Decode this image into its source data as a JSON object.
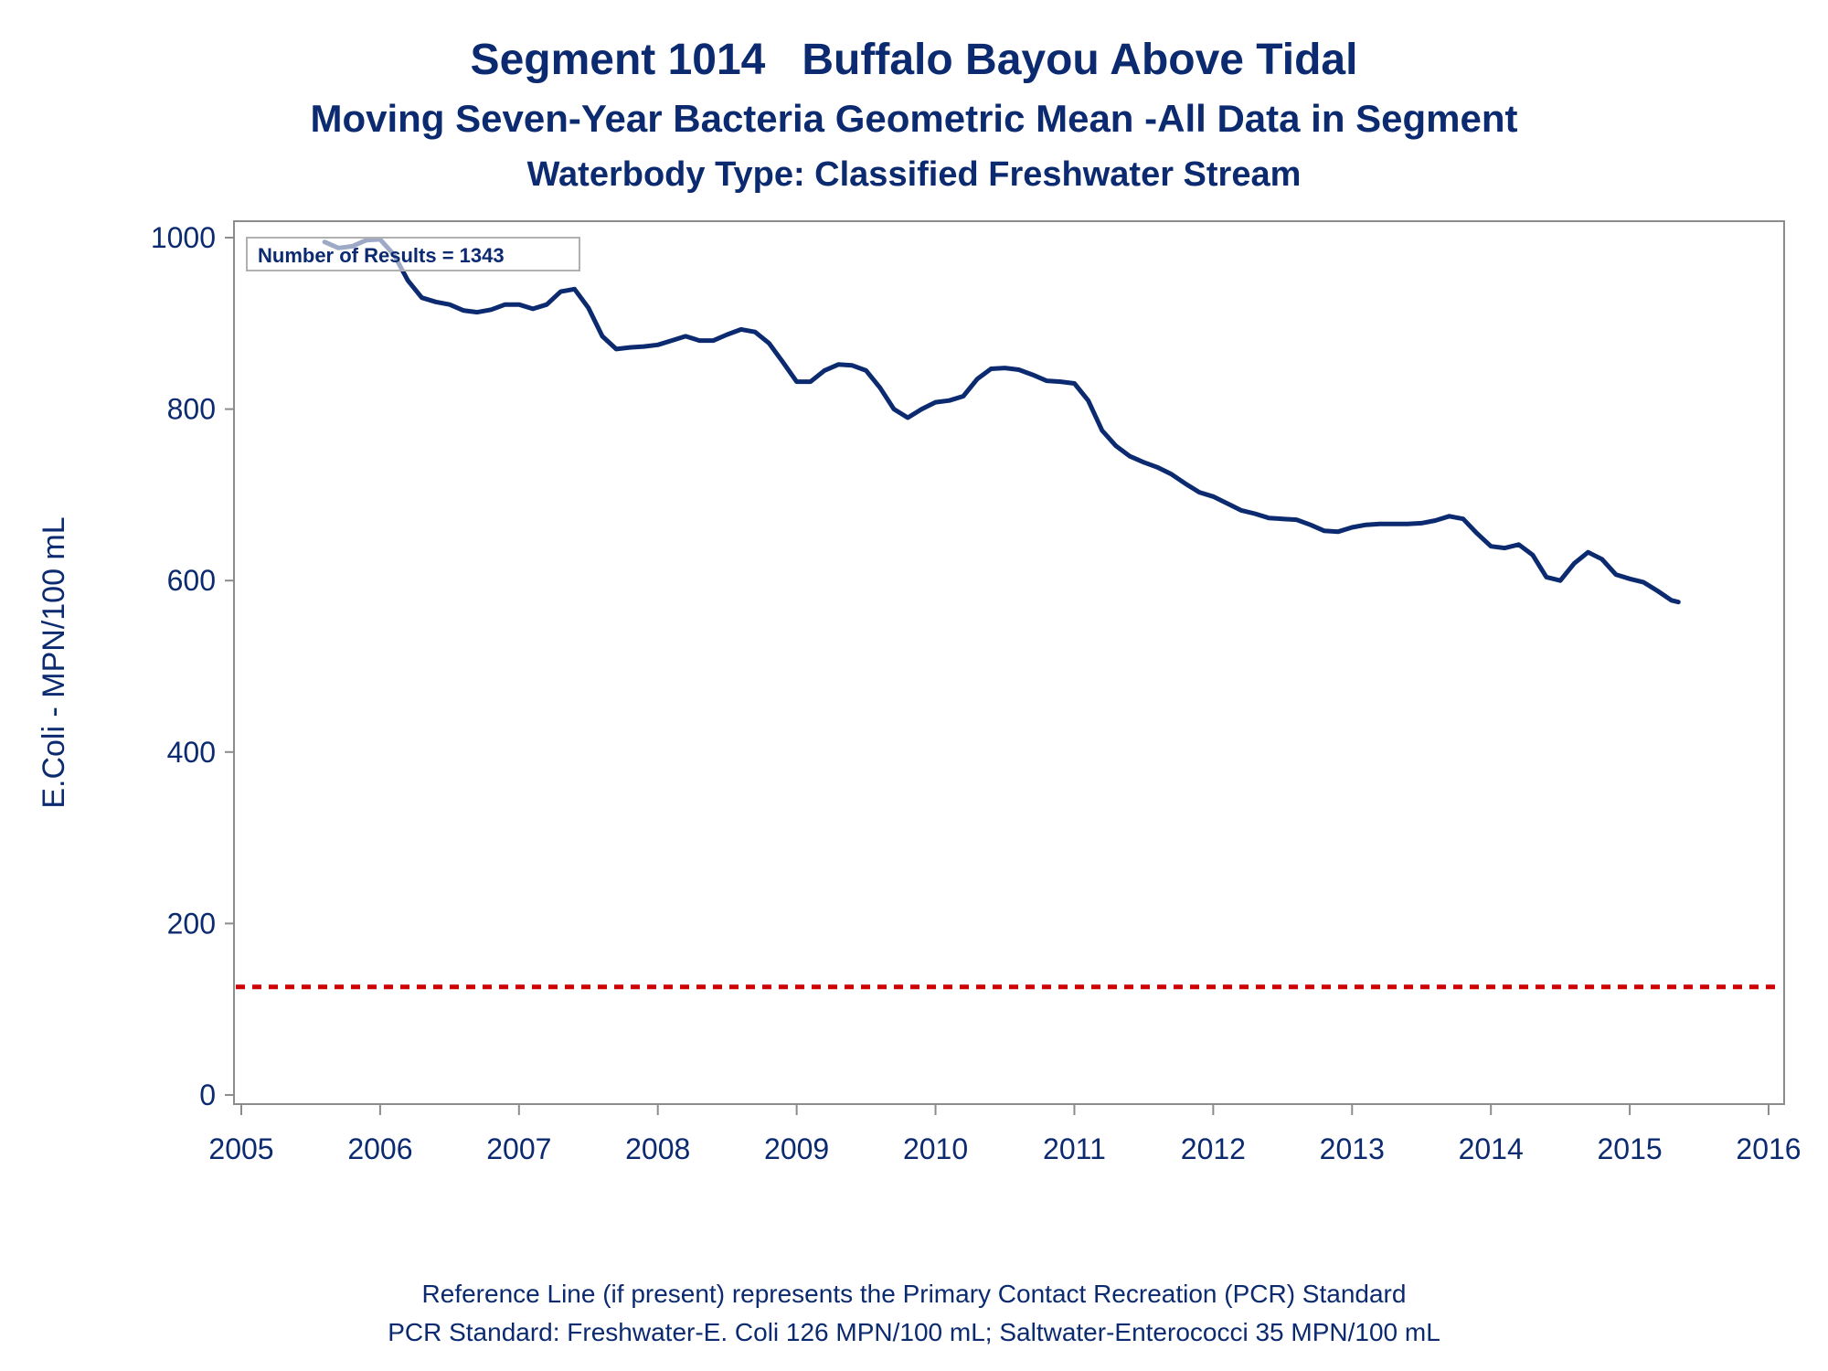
{
  "colors": {
    "text": "#0b2a6f",
    "series": "#0b2a6f",
    "reference": "#cc0000",
    "frame": "#8c8c8c"
  },
  "footnote": {
    "line1": "Reference Line (if present) represents the Primary Contact Recreation (PCR) Standard",
    "line2": "PCR Standard: Freshwater-E. Coli 126 MPN/100 mL; Saltwater-Enterococci 35 MPN/100 mL"
  },
  "chart_data": {
    "type": "line",
    "title": "Segment 1014   Buffalo Bayou Above Tidal",
    "subtitle": "Moving Seven-Year Bacteria Geometric Mean -All Data in Segment",
    "subtitle2": "Waterbody Type: Classified Freshwater Stream",
    "xlabel": "",
    "ylabel": "E.Coli - MPN/100 mL",
    "xlim": [
      2005,
      2016
    ],
    "ylim": [
      0,
      1000
    ],
    "xticks": [
      "2005",
      "2006",
      "2007",
      "2008",
      "2009",
      "2010",
      "2011",
      "2012",
      "2013",
      "2014",
      "2015",
      "2016"
    ],
    "yticks": [
      "0",
      "200",
      "400",
      "600",
      "800",
      "1000"
    ],
    "grid": false,
    "annotation": "Number of Results = 1343",
    "reference_line": {
      "y": 126,
      "style": "dashed"
    },
    "series": [
      {
        "x": [
          2005.6,
          2005.7,
          2005.8,
          2005.9,
          2006.0,
          2006.1,
          2006.2,
          2006.3,
          2006.4,
          2006.5,
          2006.6,
          2006.7,
          2006.8,
          2006.9,
          2007.0,
          2007.1,
          2007.2,
          2007.3,
          2007.4,
          2007.5,
          2007.6,
          2007.7,
          2007.8,
          2007.9,
          2008.0,
          2008.1,
          2008.2,
          2008.3,
          2008.4,
          2008.5,
          2008.6,
          2008.7,
          2008.8,
          2008.9,
          2009.0,
          2009.1,
          2009.2,
          2009.3,
          2009.4,
          2009.5,
          2009.6,
          2009.7,
          2009.8,
          2009.9,
          2010.0,
          2010.1,
          2010.2,
          2010.3,
          2010.4,
          2010.5,
          2010.6,
          2010.7,
          2010.8,
          2010.9,
          2011.0,
          2011.1,
          2011.2,
          2011.3,
          2011.4,
          2011.5,
          2011.6,
          2011.7,
          2011.8,
          2011.9,
          2012.0,
          2012.1,
          2012.2,
          2012.3,
          2012.4,
          2012.5,
          2012.6,
          2012.7,
          2012.8,
          2012.9,
          2013.0,
          2013.1,
          2013.2,
          2013.3,
          2013.4,
          2013.5,
          2013.6,
          2013.7,
          2013.8,
          2013.9,
          2014.0,
          2014.1,
          2014.2,
          2014.3,
          2014.4,
          2014.5,
          2014.6,
          2014.7,
          2014.8,
          2014.9,
          2015.0,
          2015.1,
          2015.2,
          2015.3,
          2015.35
        ],
        "values": [
          995,
          988,
          990,
          997,
          998,
          980,
          950,
          930,
          925,
          922,
          915,
          913,
          916,
          922,
          922,
          917,
          922,
          937,
          940,
          918,
          885,
          870,
          872,
          873,
          875,
          880,
          885,
          880,
          880,
          887,
          893,
          890,
          877,
          855,
          832,
          832,
          845,
          852,
          851,
          845,
          825,
          800,
          790,
          800,
          808,
          810,
          815,
          835,
          847,
          848,
          846,
          840,
          833,
          832,
          830,
          810,
          775,
          757,
          745,
          738,
          732,
          724,
          713,
          703,
          698,
          690,
          682,
          678,
          673,
          672,
          671,
          665,
          658,
          657,
          662,
          665,
          666,
          666,
          666,
          667,
          670,
          675,
          672,
          655,
          640,
          638,
          642,
          630,
          604,
          600,
          620,
          633,
          625,
          607,
          602,
          598,
          588,
          577,
          575
        ]
      }
    ]
  }
}
